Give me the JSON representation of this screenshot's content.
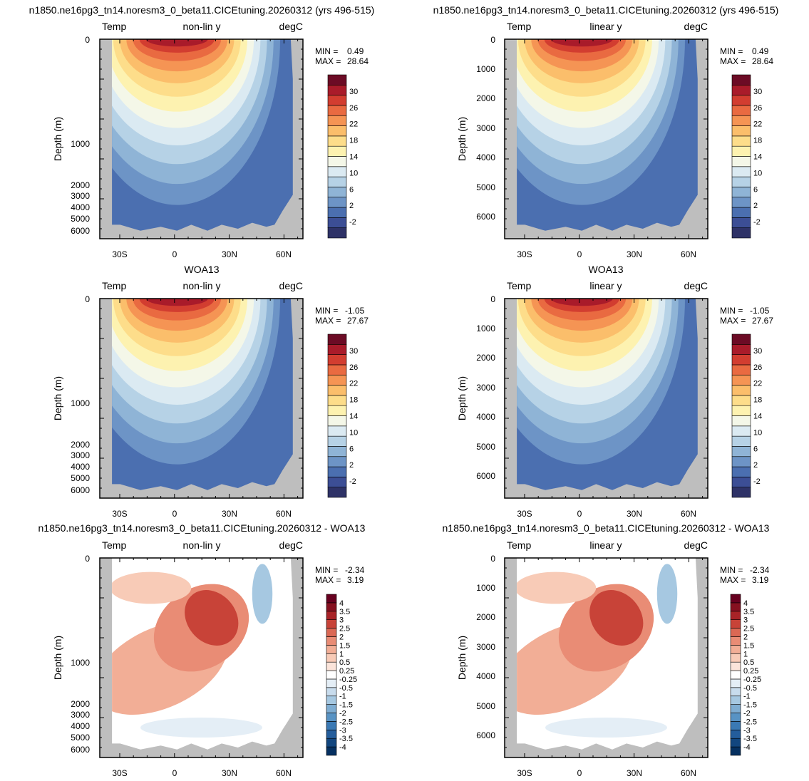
{
  "figure": {
    "rows": [
      {
        "title": "n1850.ne16pg3_tn14.noresm3_0_beta11.CICEtuning.20260312 (yrs 496-515)",
        "kind": "model",
        "min_label": "MIN =",
        "min_value": "0.49",
        "max_label": "MAX =",
        "max_value": "28.64"
      },
      {
        "title": "WOA13",
        "kind": "obs",
        "min_label": "MIN =",
        "min_value": "-1.05",
        "max_label": "MAX =",
        "max_value": "27.67"
      },
      {
        "title": "n1850.ne16pg3_tn14.noresm3_0_beta11.CICEtuning.20260312 - WOA13",
        "kind": "diff",
        "min_label": "MIN =",
        "min_value": "-2.34",
        "max_label": "MAX =",
        "max_value": "3.19"
      }
    ],
    "columns": [
      {
        "scale_label": "non-lin y",
        "y_ticks": [
          "0",
          "1000",
          "2000",
          "3000",
          "4000",
          "5000",
          "6000"
        ]
      },
      {
        "scale_label": "linear y",
        "y_ticks": [
          "0",
          "1000",
          "2000",
          "3000",
          "4000",
          "5000",
          "6000"
        ]
      }
    ],
    "left_label": "Temp",
    "units_label": "degC",
    "ylabel": "Depth (m)",
    "x_ticks": [
      "30S",
      "0",
      "30N",
      "60N"
    ]
  },
  "chart_data": [
    {
      "type": "heatmap",
      "panel": "model / non-lin y",
      "title": "n1850.ne16pg3_tn14.noresm3_0_beta11.CICEtuning.20260312 (yrs 496-515)",
      "ylabel": "Depth (m)",
      "xlim_deg_lat": [
        -38,
        70
      ],
      "ylim_m": [
        0,
        6400
      ],
      "min": 0.49,
      "max": 28.64,
      "colorbar": [
        -2,
        2,
        6,
        10,
        14,
        18,
        22,
        26,
        30
      ]
    },
    {
      "type": "heatmap",
      "panel": "model / linear y",
      "title": "n1850.ne16pg3_tn14.noresm3_0_beta11.CICEtuning.20260312 (yrs 496-515)",
      "ylabel": "Depth (m)",
      "xlim_deg_lat": [
        -38,
        70
      ],
      "ylim_m": [
        0,
        6800
      ],
      "min": 0.49,
      "max": 28.64,
      "colorbar": [
        -2,
        2,
        6,
        10,
        14,
        18,
        22,
        26,
        30
      ]
    },
    {
      "type": "heatmap",
      "panel": "WOA13 / non-lin y",
      "title": "WOA13",
      "ylabel": "Depth (m)",
      "xlim_deg_lat": [
        -38,
        70
      ],
      "ylim_m": [
        0,
        6400
      ],
      "min": -1.05,
      "max": 27.67,
      "colorbar": [
        -2,
        2,
        6,
        10,
        14,
        18,
        22,
        26,
        30
      ]
    },
    {
      "type": "heatmap",
      "panel": "WOA13 / linear y",
      "title": "WOA13",
      "ylabel": "Depth (m)",
      "xlim_deg_lat": [
        -38,
        70
      ],
      "ylim_m": [
        0,
        6800
      ],
      "min": -1.05,
      "max": 27.67,
      "colorbar": [
        -2,
        2,
        6,
        10,
        14,
        18,
        22,
        26,
        30
      ]
    },
    {
      "type": "heatmap",
      "panel": "difference / non-lin y",
      "title": "n1850.ne16pg3_tn14.noresm3_0_beta11.CICEtuning.20260312 - WOA13",
      "ylabel": "Depth (m)",
      "xlim_deg_lat": [
        -38,
        70
      ],
      "ylim_m": [
        0,
        6400
      ],
      "min": -2.34,
      "max": 3.19,
      "colorbar": [
        -4,
        -3.5,
        -3,
        -2.5,
        -2,
        -1.5,
        -1,
        -0.5,
        -0.25,
        0.25,
        0.5,
        1,
        1.5,
        2,
        2.5,
        3,
        3.5,
        4
      ]
    },
    {
      "type": "heatmap",
      "panel": "difference / linear y",
      "title": "n1850.ne16pg3_tn14.noresm3_0_beta11.CICEtuning.20260312 - WOA13",
      "ylabel": "Depth (m)",
      "xlim_deg_lat": [
        -38,
        70
      ],
      "ylim_m": [
        0,
        6800
      ],
      "min": -2.34,
      "max": 3.19,
      "colorbar": [
        -4,
        -3.5,
        -3,
        -2.5,
        -2,
        -1.5,
        -1,
        -0.5,
        -0.25,
        0.25,
        0.5,
        1,
        1.5,
        2,
        2.5,
        3,
        3.5,
        4
      ]
    }
  ],
  "colors": {
    "land": "#bebebe",
    "temp_levels": [
      "#2e3267",
      "#3c4e95",
      "#4b6fb0",
      "#6d94c6",
      "#8fb4d6",
      "#b6d2e6",
      "#dbeaf2",
      "#f4f7e8",
      "#fdf2b0",
      "#fddd8a",
      "#fbbe6b",
      "#f59454",
      "#e96a41",
      "#d23d30",
      "#a91b2a",
      "#6c0b25"
    ],
    "diff_levels": [
      "#053061",
      "#12467f",
      "#245d9c",
      "#3a79b4",
      "#5893c4",
      "#7fadd2",
      "#a6c8e1",
      "#c8dced",
      "#e4eef6",
      "#ffffff",
      "#fbe4da",
      "#f8cbb7",
      "#f2ae96",
      "#e98c75",
      "#db6854",
      "#c84338",
      "#a82327",
      "#861020",
      "#67001f"
    ]
  }
}
